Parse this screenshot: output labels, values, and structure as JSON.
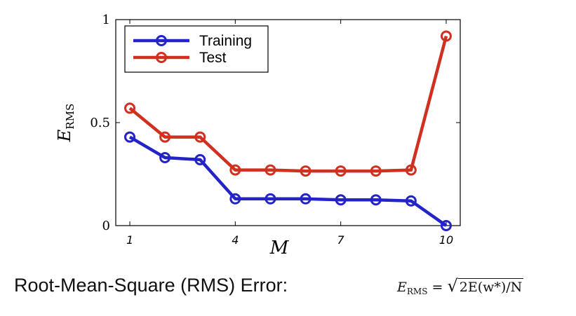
{
  "chart_data": {
    "type": "line",
    "x": [
      1,
      2,
      3,
      4,
      5,
      6,
      7,
      8,
      9,
      10
    ],
    "series": [
      {
        "name": "Training",
        "color": "#2323c8",
        "values": [
          0.43,
          0.33,
          0.32,
          0.13,
          0.13,
          0.13,
          0.125,
          0.125,
          0.12,
          0.0
        ]
      },
      {
        "name": "Test",
        "color": "#d03020",
        "values": [
          0.57,
          0.43,
          0.43,
          0.27,
          0.27,
          0.265,
          0.265,
          0.265,
          0.27,
          0.92
        ]
      }
    ],
    "xlabel": "M",
    "ylabel": {
      "main": "E",
      "sub": "RMS"
    },
    "xticks": [
      "1",
      "4",
      "7",
      "10"
    ],
    "yticks": [
      "0",
      "0.5",
      "1"
    ],
    "xlim": [
      0.6,
      10.4
    ],
    "ylim": [
      0,
      1
    ],
    "grid": false,
    "legend_position": "top-left"
  },
  "caption": "Root-Mean-Square (RMS) Error:",
  "formula": {
    "lhs": "E",
    "lhs_sub": "RMS",
    "equals": "=",
    "sqrt": "√",
    "radicand": "2E(w*)/N"
  }
}
